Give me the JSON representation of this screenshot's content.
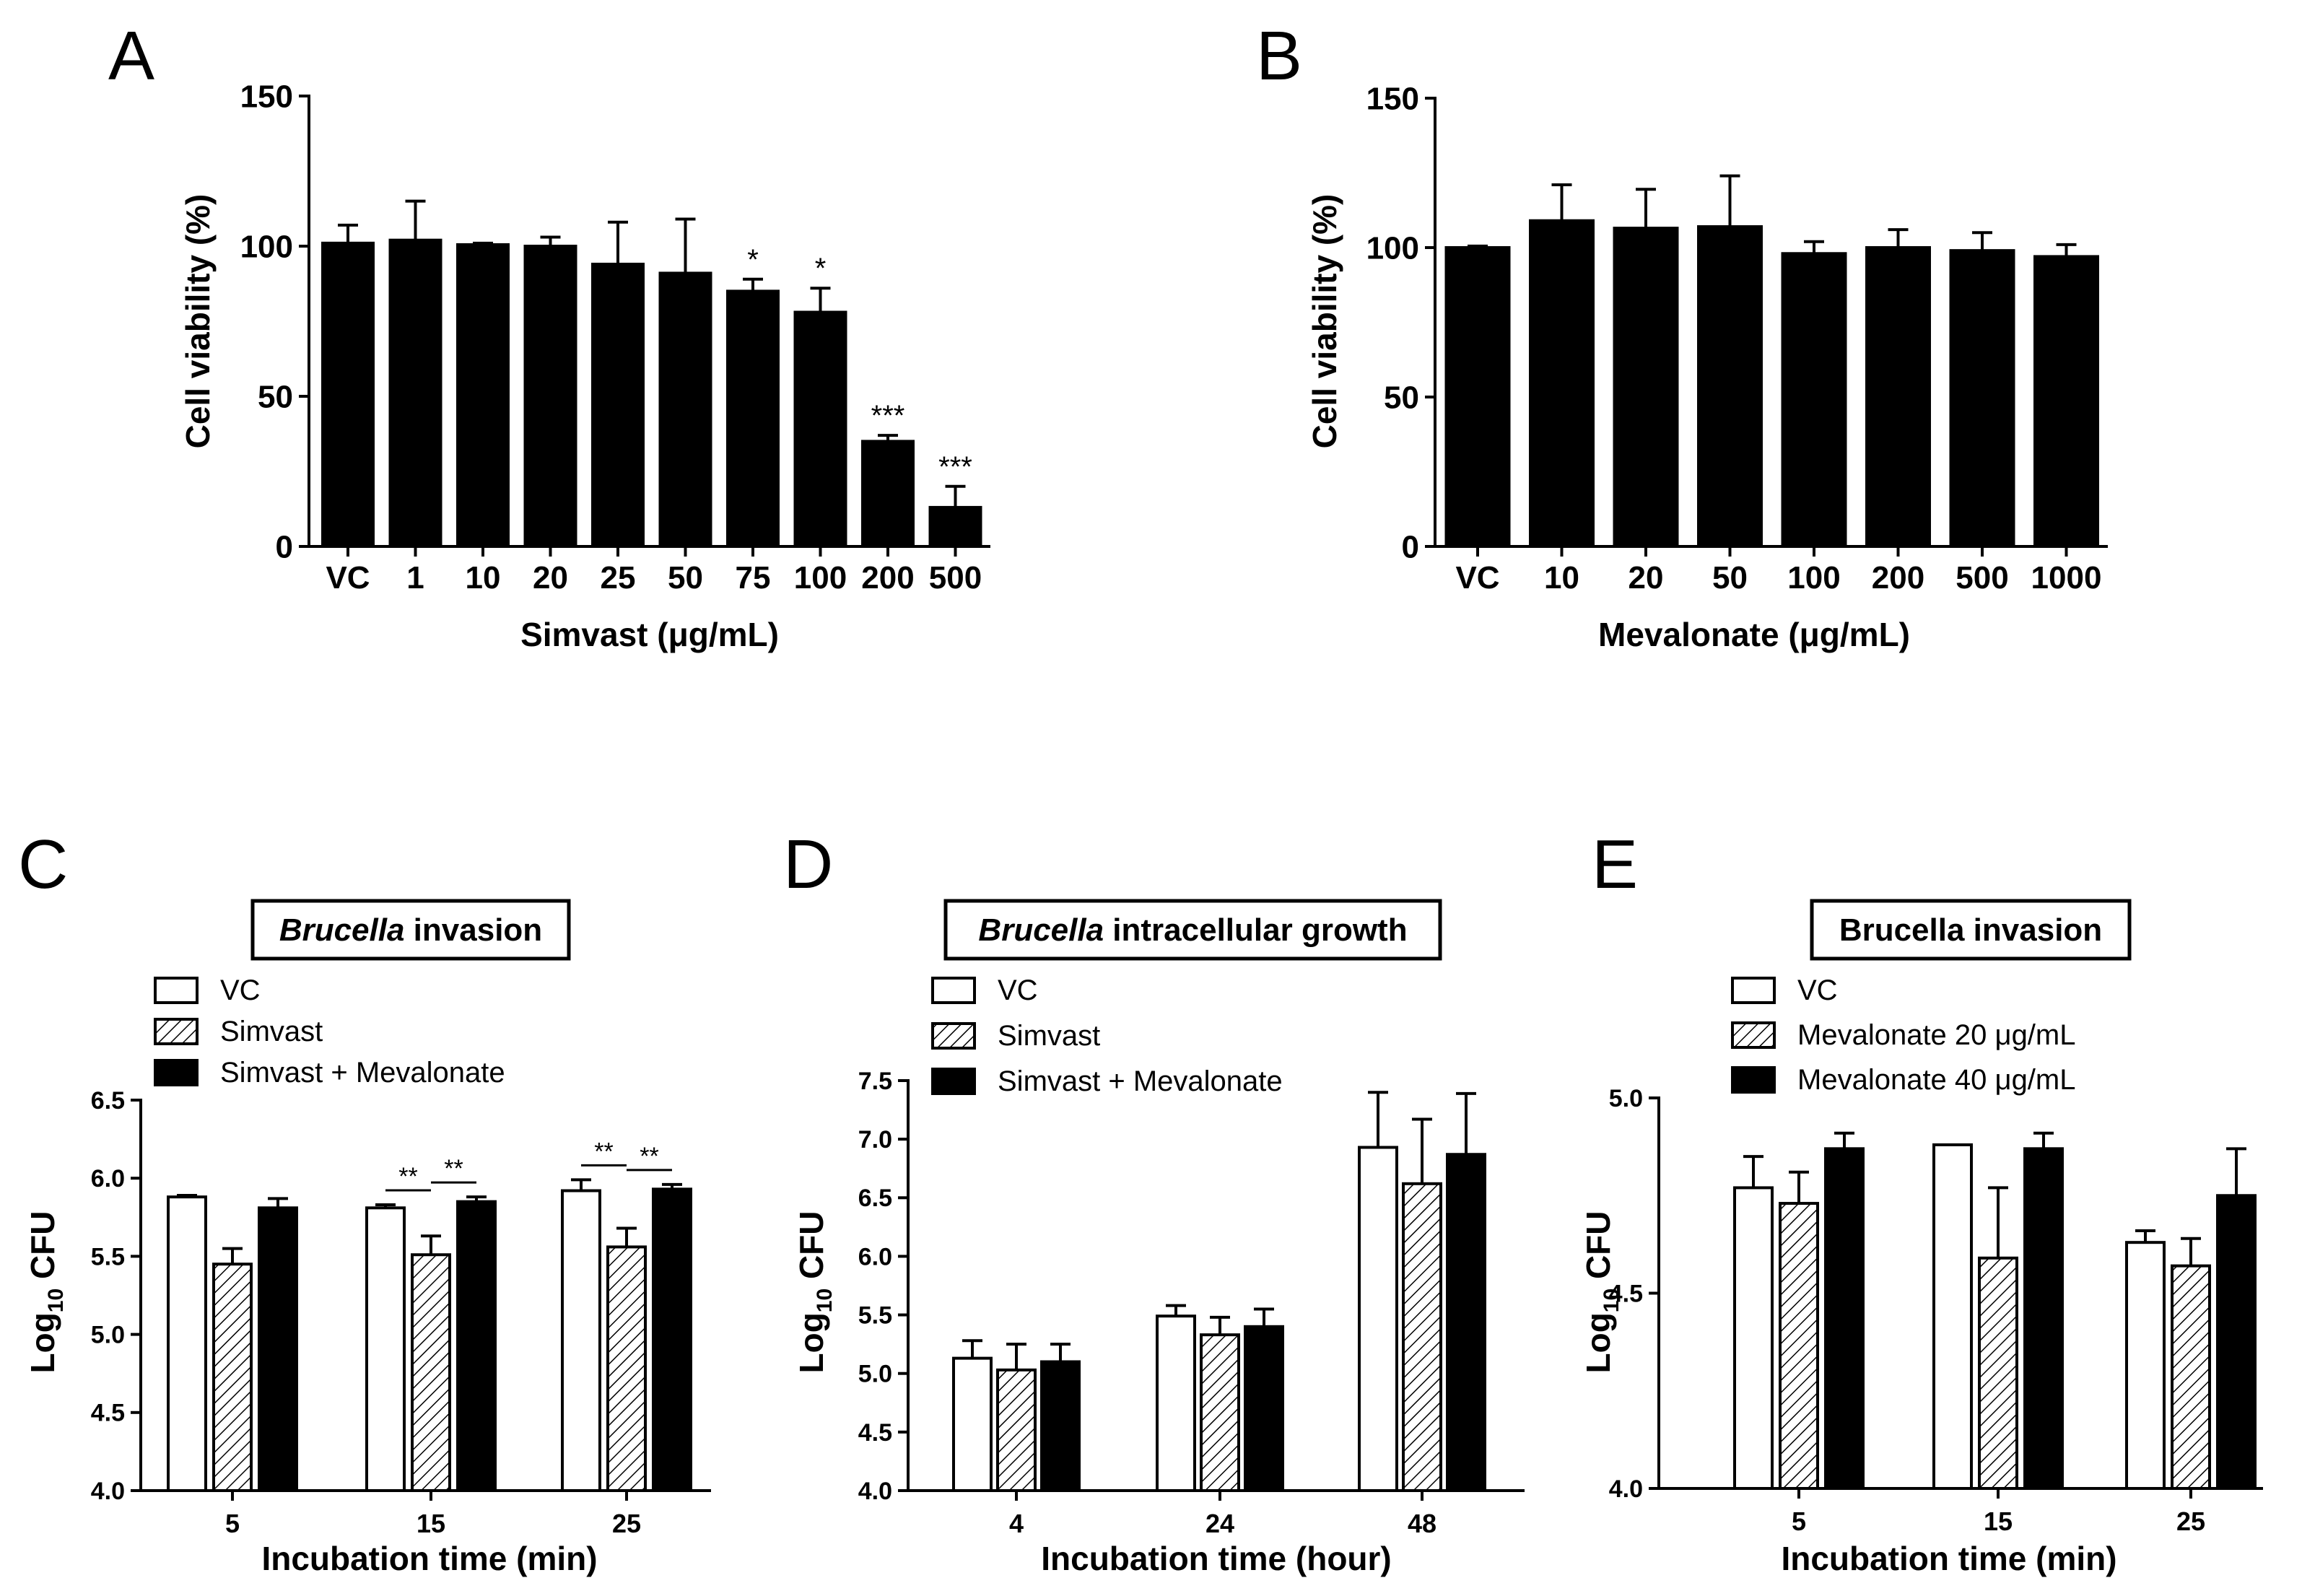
{
  "figure": {
    "colors": {
      "ink": "#000000",
      "paper": "#ffffff",
      "hatch": "#000000"
    }
  },
  "chart_data": [
    {
      "panel": "A",
      "type": "bar",
      "title": "",
      "xlabel": "Simvast  (μg/mL)",
      "ylabel": "Cell viability (%)",
      "ylim": [
        0,
        150
      ],
      "yticks": [
        "0",
        "50",
        "100",
        "150"
      ],
      "ytick_values": [
        0,
        50,
        100,
        150
      ],
      "categories": [
        "VC",
        "1",
        "10",
        "20",
        "25",
        "50",
        "75",
        "100",
        "200",
        "500"
      ],
      "series": [
        {
          "name": "Simvast",
          "fill": "solid",
          "values": [
            101,
            102,
            100.5,
            100,
            94,
            91,
            85,
            78,
            35,
            13
          ],
          "errors": [
            6,
            13,
            0.5,
            3,
            14,
            18,
            4,
            8,
            2,
            7
          ],
          "annotations": [
            "",
            "",
            "",
            "",
            "",
            "",
            "*",
            "*",
            "***",
            "***"
          ]
        }
      ],
      "significance": [],
      "legend": []
    },
    {
      "panel": "B",
      "type": "bar",
      "title": "",
      "xlabel": "Mevalonate  (μg/mL)",
      "ylabel": "Cell viability (%)",
      "ylim": [
        0,
        150
      ],
      "yticks": [
        "0",
        "50",
        "100",
        "150"
      ],
      "ytick_values": [
        0,
        50,
        100,
        150
      ],
      "categories": [
        "VC",
        "10",
        "20",
        "50",
        "100",
        "200",
        "500",
        "1000"
      ],
      "series": [
        {
          "name": "Mevalonate",
          "fill": "solid",
          "values": [
            100,
            109,
            106.5,
            107,
            98,
            100,
            99,
            97
          ],
          "errors": [
            0.5,
            12,
            13,
            17,
            4,
            6,
            6,
            4
          ],
          "annotations": [
            "",
            "",
            "",
            "",
            "",
            "",
            "",
            ""
          ]
        }
      ],
      "significance": [],
      "legend": []
    },
    {
      "panel": "C",
      "type": "bar",
      "title_italic": "Brucella",
      "title_rest": " invasion",
      "xlabel": "Incubation time (min)",
      "ylabel": "Log10 CFU",
      "ylim": [
        4.0,
        6.5
      ],
      "yticks": [
        "4.0",
        "4.5",
        "5.0",
        "5.5",
        "6.0",
        "6.5"
      ],
      "ytick_values": [
        4.0,
        4.5,
        5.0,
        5.5,
        6.0,
        6.5
      ],
      "categories": [
        "5",
        "15",
        "25"
      ],
      "series": [
        {
          "name": "VC",
          "fill": "white",
          "values": [
            5.88,
            5.81,
            5.92
          ],
          "errors": [
            0.01,
            0.02,
            0.07
          ]
        },
        {
          "name": "Simvast",
          "fill": "hatch",
          "values": [
            5.45,
            5.51,
            5.56
          ],
          "errors": [
            0.1,
            0.12,
            0.12
          ]
        },
        {
          "name": "Simvast + Mevalonate",
          "fill": "black",
          "values": [
            5.81,
            5.85,
            5.93
          ],
          "errors": [
            0.06,
            0.03,
            0.03
          ]
        }
      ],
      "significance": [
        {
          "group": 1,
          "from": 0,
          "to": 1,
          "label": "**"
        },
        {
          "group": 1,
          "from": 1,
          "to": 2,
          "label": "**"
        },
        {
          "group": 2,
          "from": 0,
          "to": 1,
          "label": "**"
        },
        {
          "group": 2,
          "from": 1,
          "to": 2,
          "label": "**"
        }
      ],
      "legend": [
        "VC",
        "Simvast",
        "Simvast + Mevalonate"
      ]
    },
    {
      "panel": "D",
      "type": "bar",
      "title_italic": "Brucella",
      "title_rest": " intracellular growth",
      "xlabel": "Incubation time (hour)",
      "ylabel": "Log10 CFU",
      "ylim": [
        4.0,
        7.5
      ],
      "yticks": [
        "4.0",
        "4.5",
        "5.0",
        "5.5",
        "6.0",
        "6.5",
        "7.0",
        "7.5"
      ],
      "ytick_values": [
        4.0,
        4.5,
        5.0,
        5.5,
        6.0,
        6.5,
        7.0,
        7.5
      ],
      "categories": [
        "4",
        "24",
        "48"
      ],
      "series": [
        {
          "name": "VC",
          "fill": "white",
          "values": [
            5.13,
            5.49,
            6.93
          ],
          "errors": [
            0.15,
            0.09,
            0.47
          ]
        },
        {
          "name": "Simvast",
          "fill": "hatch",
          "values": [
            5.03,
            5.33,
            6.62
          ],
          "errors": [
            0.22,
            0.15,
            0.55
          ]
        },
        {
          "name": "Simvast + Mevalonate",
          "fill": "black",
          "values": [
            5.1,
            5.4,
            6.87
          ],
          "errors": [
            0.15,
            0.15,
            0.52
          ]
        }
      ],
      "significance": [],
      "legend": [
        "VC",
        "Simvast",
        "Simvast + Mevalonate"
      ]
    },
    {
      "panel": "E",
      "type": "bar",
      "title_italic": "",
      "title_rest": "Brucella invasion",
      "xlabel": "Incubation time (min)",
      "ylabel": "Log10 CFU",
      "ylim": [
        4.0,
        5.0
      ],
      "yticks": [
        "4.0",
        "4.5",
        "5.0"
      ],
      "ytick_values": [
        4.0,
        4.5,
        5.0
      ],
      "categories": [
        "5",
        "15",
        "25"
      ],
      "series": [
        {
          "name": "VC",
          "fill": "white",
          "values": [
            4.77,
            4.88,
            4.63
          ],
          "errors": [
            0.08,
            0.0,
            0.03
          ]
        },
        {
          "name": "Mevalonate 20 μg/mL",
          "fill": "hatch",
          "values": [
            4.73,
            4.59,
            4.57
          ],
          "errors": [
            0.08,
            0.18,
            0.07
          ]
        },
        {
          "name": "Mevalonate 40 μg/mL",
          "fill": "black",
          "values": [
            4.87,
            4.87,
            4.75
          ],
          "errors": [
            0.04,
            0.04,
            0.12
          ]
        }
      ],
      "significance": [],
      "legend": [
        "VC",
        "Mevalonate 20 μg/mL",
        "Mevalonate 40 μg/mL"
      ]
    }
  ]
}
